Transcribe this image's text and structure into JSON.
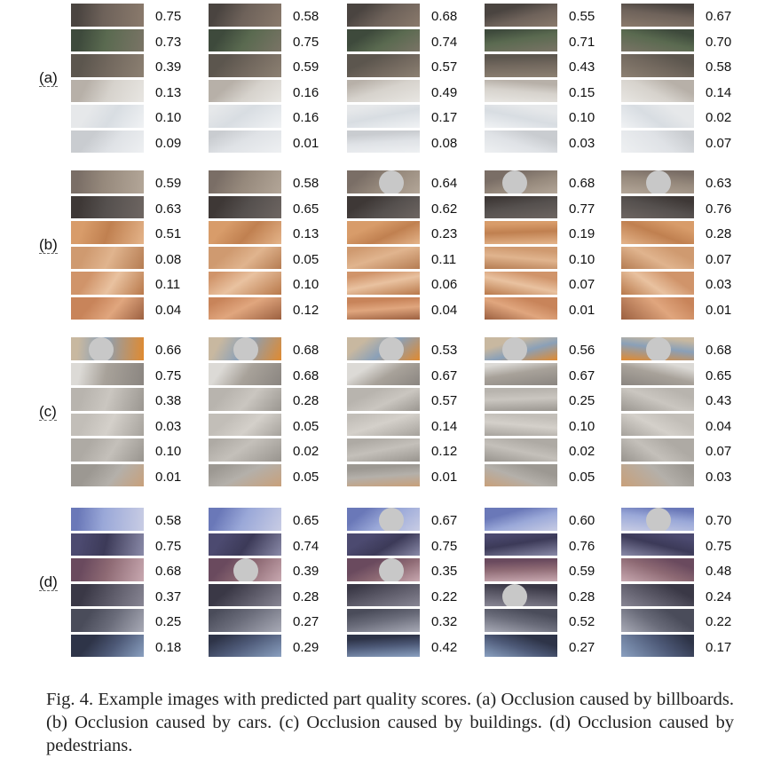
{
  "figure": {
    "row_labels": [
      "(a)",
      "(b)",
      "(c)",
      "(d)"
    ],
    "scores": [
      [
        [
          "0.75",
          "0.73",
          "0.39",
          "0.13",
          "0.10",
          "0.09"
        ],
        [
          "0.58",
          "0.75",
          "0.59",
          "0.16",
          "0.16",
          "0.01"
        ],
        [
          "0.68",
          "0.74",
          "0.57",
          "0.49",
          "0.17",
          "0.08"
        ],
        [
          "0.55",
          "0.71",
          "0.43",
          "0.15",
          "0.10",
          "0.03"
        ],
        [
          "0.67",
          "0.70",
          "0.58",
          "0.14",
          "0.02",
          "0.07"
        ]
      ],
      [
        [
          "0.59",
          "0.63",
          "0.51",
          "0.08",
          "0.11",
          "0.04"
        ],
        [
          "0.58",
          "0.65",
          "0.13",
          "0.05",
          "0.10",
          "0.12"
        ],
        [
          "0.64",
          "0.62",
          "0.23",
          "0.11",
          "0.06",
          "0.04"
        ],
        [
          "0.68",
          "0.77",
          "0.19",
          "0.10",
          "0.07",
          "0.01"
        ],
        [
          "0.63",
          "0.76",
          "0.28",
          "0.07",
          "0.03",
          "0.01"
        ]
      ],
      [
        [
          "0.66",
          "0.75",
          "0.38",
          "0.03",
          "0.10",
          "0.01"
        ],
        [
          "0.68",
          "0.68",
          "0.28",
          "0.05",
          "0.02",
          "0.05"
        ],
        [
          "0.53",
          "0.67",
          "0.57",
          "0.14",
          "0.12",
          "0.01"
        ],
        [
          "0.56",
          "0.67",
          "0.25",
          "0.10",
          "0.02",
          "0.05"
        ],
        [
          "0.68",
          "0.65",
          "0.43",
          "0.04",
          "0.07",
          "0.03"
        ]
      ],
      [
        [
          "0.58",
          "0.75",
          "0.68",
          "0.37",
          "0.25",
          "0.18"
        ],
        [
          "0.65",
          "0.74",
          "0.39",
          "0.28",
          "0.27",
          "0.29"
        ],
        [
          "0.67",
          "0.75",
          "0.35",
          "0.22",
          "0.32",
          "0.42"
        ],
        [
          "0.60",
          "0.76",
          "0.59",
          "0.28",
          "0.52",
          "0.27"
        ],
        [
          "0.70",
          "0.75",
          "0.48",
          "0.24",
          "0.22",
          "0.17"
        ]
      ]
    ]
  },
  "caption": {
    "text": "Fig. 4.   Example images with predicted part quality scores. (a) Occlusion caused by billboards. (b) Occlusion caused by cars. (c) Occlusion caused by buildings. (d) Occlusion caused by pedestrians."
  }
}
